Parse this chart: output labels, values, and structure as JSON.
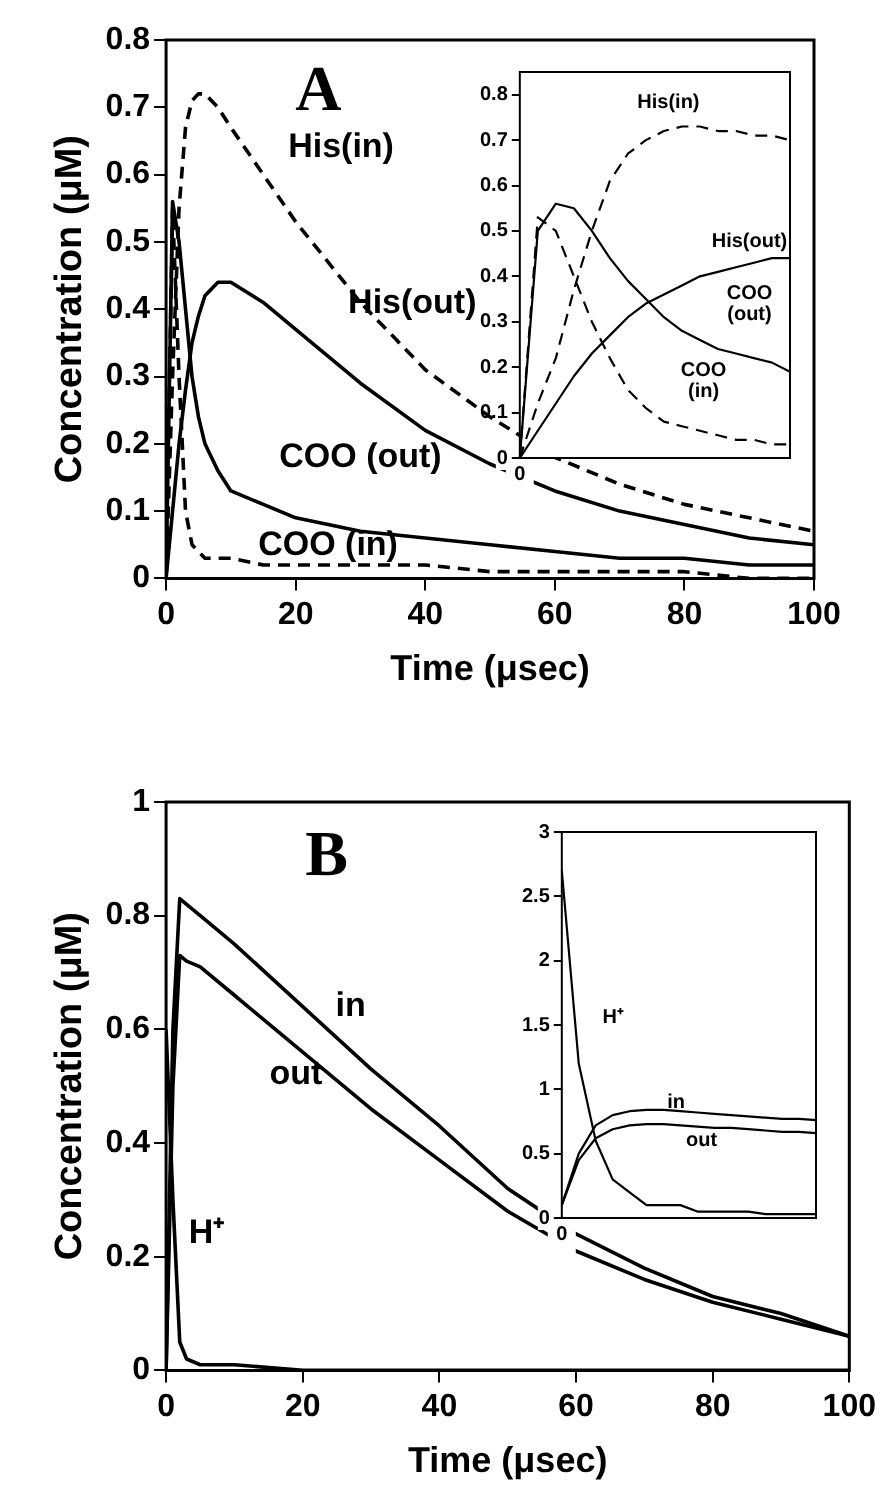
{
  "chart_data": [
    {
      "type": "line",
      "title": "A",
      "xlabel": "Time (μsec)",
      "ylabel": "Concentration (μM)",
      "marker": "none",
      "x": [
        0,
        1,
        2,
        3,
        4,
        5,
        6,
        8,
        10,
        15,
        20,
        30,
        40,
        50,
        60,
        70,
        80,
        90,
        100
      ],
      "series": [
        {
          "color": "#000000",
          "line_style": "dashed",
          "values": [
            0,
            0.3,
            0.55,
            0.67,
            0.71,
            0.72,
            0.72,
            0.7,
            0.67,
            0.6,
            0.53,
            0.41,
            0.31,
            0.24,
            0.18,
            0.14,
            0.11,
            0.09,
            0.07
          ]
        },
        {
          "color": "#000000",
          "line_style": "solid",
          "values": [
            0,
            0.1,
            0.2,
            0.28,
            0.35,
            0.39,
            0.42,
            0.44,
            0.44,
            0.41,
            0.37,
            0.29,
            0.22,
            0.17,
            0.13,
            0.1,
            0.08,
            0.06,
            0.05
          ]
        },
        {
          "color": "#000000",
          "line_style": "solid",
          "values": [
            0,
            0.56,
            0.5,
            0.4,
            0.3,
            0.24,
            0.2,
            0.16,
            0.13,
            0.11,
            0.09,
            0.07,
            0.06,
            0.05,
            0.04,
            0.03,
            0.03,
            0.02,
            0.02
          ]
        },
        {
          "color": "#000000",
          "line_style": "dashed",
          "values": [
            0,
            0.55,
            0.3,
            0.1,
            0.05,
            0.04,
            0.03,
            0.03,
            0.03,
            0.02,
            0.02,
            0.02,
            0.02,
            0.01,
            0.01,
            0.01,
            0.01,
            0,
            0
          ]
        }
      ],
      "xlim": [
        0,
        100
      ],
      "xticks": [
        0,
        20,
        40,
        60,
        80,
        100
      ],
      "ylim": [
        0,
        0.8
      ],
      "yticks": [
        0,
        0.1,
        0.2,
        0.3,
        0.4,
        0.5,
        0.6,
        0.7,
        0.8
      ],
      "annotations": [
        "His(in)",
        "His(out)",
        "COO (out)",
        "COO (in)"
      ]
    },
    {
      "type": "line",
      "marker": "none",
      "categories": [
        "0",
        null,
        null,
        null,
        null,
        null,
        null,
        null,
        null,
        null,
        null,
        null,
        null,
        null,
        null,
        null
      ],
      "series": [
        {
          "color": "#000000",
          "line_style": "dashed",
          "values": [
            0,
            0.12,
            0.22,
            0.37,
            0.5,
            0.61,
            0.67,
            0.7,
            0.72,
            0.73,
            0.73,
            0.72,
            0.72,
            0.71,
            0.71,
            0.7
          ]
        },
        {
          "color": "#000000",
          "line_style": "solid",
          "values": [
            0,
            0.06,
            0.12,
            0.18,
            0.23,
            0.27,
            0.31,
            0.34,
            0.36,
            0.38,
            0.4,
            0.41,
            0.42,
            0.43,
            0.44,
            0.44
          ]
        },
        {
          "color": "#000000",
          "line_style": "solid",
          "values": [
            0,
            0.5,
            0.56,
            0.55,
            0.5,
            0.44,
            0.39,
            0.35,
            0.31,
            0.28,
            0.26,
            0.24,
            0.23,
            0.22,
            0.21,
            0.19
          ]
        },
        {
          "color": "#000000",
          "line_style": "dashed",
          "values": [
            0,
            0.53,
            0.5,
            0.4,
            0.3,
            0.22,
            0.15,
            0.11,
            0.08,
            0.07,
            0.06,
            0.05,
            0.04,
            0.04,
            0.03,
            0.03
          ]
        }
      ],
      "ylim": [
        0,
        0.85
      ],
      "yticks": [
        0,
        0.1,
        0.2,
        0.3,
        0.4,
        0.5,
        0.6,
        0.7,
        0.8
      ],
      "annotations": [
        "His(in)",
        "His(out)",
        "COO\n(out)",
        "COO\n(in)"
      ]
    },
    {
      "type": "line",
      "title": "B",
      "xlabel": "Time (μsec)",
      "ylabel": "Concentration (μM)",
      "marker": "none",
      "x": [
        0,
        1,
        2,
        3,
        5,
        10,
        20,
        30,
        40,
        50,
        60,
        70,
        80,
        90,
        100
      ],
      "series": [
        {
          "color": "#000000",
          "line_style": "solid",
          "values": [
            0,
            0.6,
            0.83,
            0.82,
            0.8,
            0.75,
            0.64,
            0.53,
            0.43,
            0.32,
            0.24,
            0.18,
            0.13,
            0.1,
            0.06
          ]
        },
        {
          "color": "#000000",
          "line_style": "solid",
          "values": [
            0,
            0.5,
            0.73,
            0.72,
            0.71,
            0.66,
            0.56,
            0.46,
            0.37,
            0.28,
            0.21,
            0.16,
            0.12,
            0.09,
            0.06
          ]
        },
        {
          "color": "#000000",
          "line_style": "solid",
          "values": [
            0.6,
            0.3,
            0.05,
            0.02,
            0.01,
            0.01,
            0,
            0,
            0,
            0,
            0,
            0,
            0,
            0,
            0
          ]
        }
      ],
      "xlim": [
        0,
        100
      ],
      "xticks": [
        0,
        20,
        40,
        60,
        80,
        100
      ],
      "ylim": [
        0,
        1
      ],
      "yticks": [
        0,
        0.2,
        0.4,
        0.6,
        0.8,
        1
      ],
      "annotations": [
        "in",
        "out",
        "H⁺"
      ]
    },
    {
      "type": "line",
      "marker": "none",
      "categories": [
        "0",
        null,
        null,
        null,
        null,
        null,
        null,
        null,
        null,
        null,
        null,
        null,
        null,
        null,
        null,
        null
      ],
      "series": [
        {
          "color": "#000000",
          "line_style": "solid",
          "values": [
            0.1,
            0.5,
            0.72,
            0.8,
            0.83,
            0.84,
            0.84,
            0.83,
            0.82,
            0.81,
            0.8,
            0.79,
            0.78,
            0.77,
            0.77,
            0.76
          ]
        },
        {
          "color": "#000000",
          "line_style": "solid",
          "values": [
            0.1,
            0.45,
            0.62,
            0.69,
            0.72,
            0.73,
            0.73,
            0.72,
            0.71,
            0.7,
            0.7,
            0.69,
            0.68,
            0.67,
            0.67,
            0.66
          ]
        },
        {
          "color": "#000000",
          "line_style": "solid",
          "values": [
            2.7,
            1.2,
            0.6,
            0.3,
            0.2,
            0.1,
            0.1,
            0.1,
            0.05,
            0.05,
            0.05,
            0.05,
            0.03,
            0.03,
            0.03,
            0.03
          ]
        }
      ],
      "ylim": [
        0,
        3
      ],
      "yticks": [
        0,
        0.5,
        1,
        1.5,
        2,
        2.5,
        3
      ],
      "annotations": [
        "H⁺",
        "in",
        "out"
      ]
    }
  ]
}
